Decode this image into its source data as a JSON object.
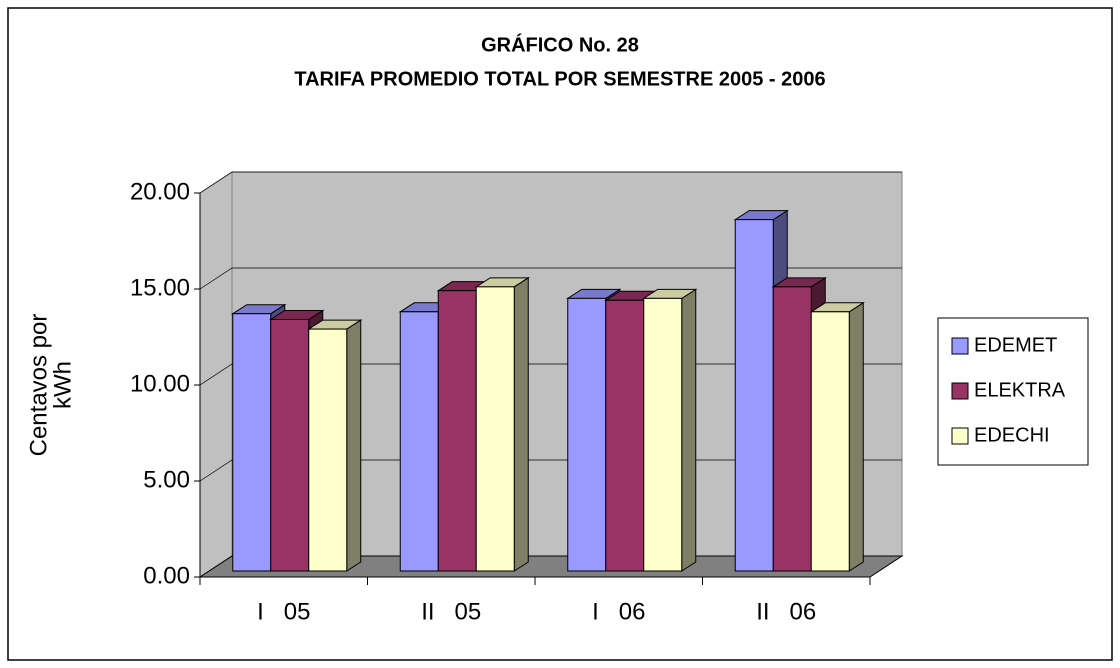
{
  "chart_data": {
    "type": "bar3d",
    "title": "GRÁFICO No.  28",
    "subtitle": "TARIFA PROMEDIO TOTAL POR SEMESTRE   2005 - 2006",
    "y_label": [
      "Centavos por",
      "kWh"
    ],
    "categories": [
      "I   05",
      "II   05",
      "I   06",
      "II   06"
    ],
    "series": [
      {
        "name": "EDEMET",
        "color": "#9999ff",
        "values": [
          13.4,
          13.5,
          14.2,
          18.3
        ]
      },
      {
        "name": "ELEKTRA",
        "color": "#993366",
        "values": [
          13.1,
          14.6,
          14.1,
          14.8
        ]
      },
      {
        "name": "EDECHI",
        "color": "#ffffcc",
        "values": [
          12.6,
          14.8,
          14.2,
          13.5
        ]
      }
    ],
    "ylim": [
      0,
      20
    ],
    "yticks": [
      {
        "value": 0,
        "label": "0.00"
      },
      {
        "value": 5,
        "label": "5.00"
      },
      {
        "value": 10,
        "label": "10.00"
      },
      {
        "value": 15,
        "label": "15.00"
      },
      {
        "value": 20,
        "label": "20.00"
      }
    ],
    "grid": true,
    "legend": "right"
  }
}
